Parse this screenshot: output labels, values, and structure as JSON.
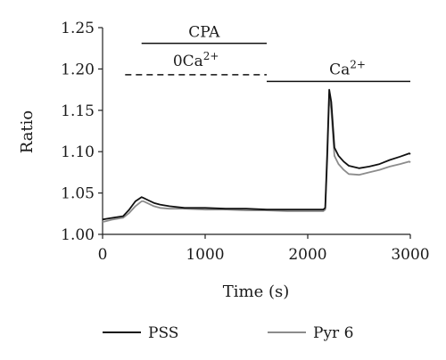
{
  "chart_data": {
    "type": "line",
    "xlabel": "Time (s)",
    "ylabel": "Ratio",
    "xlim": [
      0,
      3000
    ],
    "ylim": [
      1.0,
      1.25
    ],
    "x_ticks": [
      0,
      1000,
      2000,
      3000
    ],
    "x_tick_labels": [
      "0",
      "1000",
      "2000",
      "3000"
    ],
    "y_ticks": [
      1.0,
      1.05,
      1.1,
      1.15,
      1.2,
      1.25
    ],
    "y_tick_labels": [
      "1.00",
      "1.05",
      "1.10",
      "1.15",
      "1.20",
      "1.25"
    ],
    "grid": false,
    "legend_position": "bottom",
    "annotations": {
      "cpa": {
        "label": "CPA",
        "x_start": 380,
        "x_end": 1600,
        "y": 1.231
      },
      "zero_ca": {
        "label": "0Ca",
        "superscript": "2+",
        "x_start": 220,
        "x_end": 1600,
        "y": 1.193
      },
      "ca": {
        "label": "Ca",
        "superscript": "2+",
        "x_start": 1600,
        "x_end": 3000,
        "y": 1.185
      }
    },
    "series": [
      {
        "name": "PSS",
        "color": "#111111",
        "x": [
          0,
          100,
          200,
          260,
          320,
          380,
          400,
          450,
          500,
          560,
          650,
          800,
          1000,
          1200,
          1400,
          1600,
          1800,
          2000,
          2150,
          2170,
          2190,
          2210,
          2230,
          2260,
          2300,
          2350,
          2400,
          2500,
          2600,
          2700,
          2800,
          2900,
          2990,
          3000
        ],
        "y": [
          1.018,
          1.02,
          1.022,
          1.03,
          1.04,
          1.045,
          1.044,
          1.041,
          1.038,
          1.036,
          1.034,
          1.032,
          1.032,
          1.031,
          1.031,
          1.03,
          1.03,
          1.03,
          1.03,
          1.032,
          1.1,
          1.175,
          1.16,
          1.105,
          1.095,
          1.088,
          1.083,
          1.08,
          1.082,
          1.085,
          1.09,
          1.094,
          1.098,
          1.097
        ]
      },
      {
        "name": "Pyr 6",
        "color": "#8c8c8c",
        "x": [
          0,
          100,
          200,
          260,
          320,
          380,
          400,
          450,
          500,
          560,
          650,
          800,
          1000,
          1200,
          1400,
          1600,
          1800,
          2000,
          2150,
          2170,
          2190,
          2210,
          2230,
          2260,
          2300,
          2350,
          2400,
          2500,
          2600,
          2700,
          2800,
          2900,
          2990,
          3000
        ],
        "y": [
          1.015,
          1.018,
          1.02,
          1.026,
          1.034,
          1.04,
          1.04,
          1.037,
          1.034,
          1.032,
          1.031,
          1.031,
          1.03,
          1.03,
          1.029,
          1.029,
          1.028,
          1.028,
          1.028,
          1.03,
          1.09,
          1.168,
          1.15,
          1.095,
          1.085,
          1.078,
          1.073,
          1.072,
          1.075,
          1.078,
          1.082,
          1.085,
          1.088,
          1.087
        ]
      }
    ]
  }
}
